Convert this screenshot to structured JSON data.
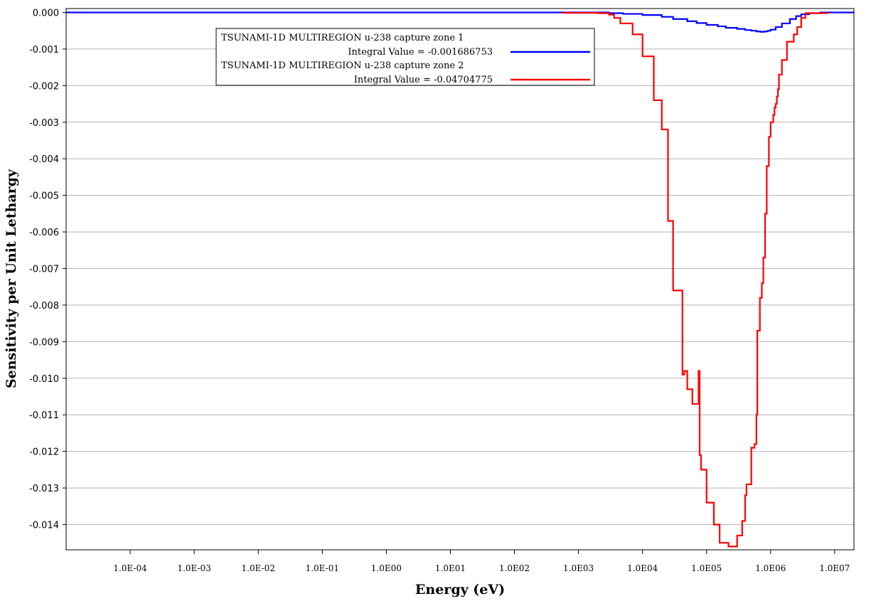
{
  "chart_data": {
    "type": "line",
    "step": true,
    "xscale": "log",
    "xlabel": "Energy (eV)",
    "ylabel": "Sensitivity per Unit Lethargy",
    "xlim": [
      1e-05,
      20000000
    ],
    "ylim": [
      -0.0147,
      0.0
    ],
    "x_ticks": [
      0.0001,
      0.001,
      0.01,
      0.1,
      1,
      10,
      100,
      1000,
      10000,
      100000,
      1000000,
      10000000
    ],
    "x_tick_labels": [
      "1.0E-04",
      "1.0E-03",
      "1.0E-02",
      "1.0E-01",
      "1.0E00",
      "1.0E01",
      "1.0E02",
      "1.0E03",
      "1.0E04",
      "1.0E05",
      "1.0E06",
      "1.0E07"
    ],
    "y_ticks": [
      0.0,
      -0.001,
      -0.002,
      -0.003,
      -0.004,
      -0.005,
      -0.006,
      -0.007,
      -0.008,
      -0.009,
      -0.01,
      -0.011,
      -0.012,
      -0.013,
      -0.014
    ],
    "y_tick_labels": [
      "0.000",
      "-0.001",
      "-0.002",
      "-0.003",
      "-0.004",
      "-0.005",
      "-0.006",
      "-0.007",
      "-0.008",
      "-0.009",
      "-0.010",
      "-0.011",
      "-0.012",
      "-0.013",
      "-0.014"
    ],
    "grid": "horizontal",
    "legend_position": "top-center",
    "series": [
      {
        "name": "TSUNAMI-1D MULTIREGION u-238 capture zone 1",
        "integral_label": "Integral Value = -0.001686753",
        "color": "#0000ff",
        "x": [
          1e-05,
          1000,
          3000,
          5000,
          10000,
          20000,
          30000,
          50000,
          70000,
          100000,
          150000,
          200000,
          300000,
          400000,
          500000,
          600000,
          700000,
          800000,
          900000,
          1000000,
          1200000,
          1500000,
          2000000,
          2500000,
          3000000,
          4000000,
          6000000,
          8000000,
          20000000
        ],
        "y": [
          0.0,
          0.0,
          -2e-05,
          -4e-05,
          -7e-05,
          -0.00012,
          -0.00018,
          -0.00024,
          -0.00029,
          -0.00034,
          -0.00038,
          -0.00042,
          -0.00045,
          -0.00048,
          -0.0005,
          -0.00052,
          -0.00053,
          -0.00052,
          -0.0005,
          -0.00047,
          -0.0004,
          -0.0003,
          -0.00018,
          -0.0001,
          -5e-05,
          -2e-05,
          0.0,
          0.0,
          0.0
        ]
      },
      {
        "name": "TSUNAMI-1D MULTIREGION u-238 capture zone 2",
        "integral_label": "Integral Value = -0.04704775",
        "color": "#ff0000",
        "x": [
          550,
          2000,
          3000,
          3600,
          4500,
          7000,
          10000,
          15000,
          20000,
          25000,
          30000,
          42000,
          45000,
          50000,
          60000,
          75000,
          78000,
          82000,
          85000,
          100000,
          130000,
          160000,
          220000,
          300000,
          360000,
          400000,
          420000,
          500000,
          560000,
          600000,
          620000,
          680000,
          730000,
          770000,
          820000,
          870000,
          940000,
          1000000,
          1100000,
          1150000,
          1200000,
          1250000,
          1300000,
          1350000,
          1500000,
          1800000,
          2300000,
          2600000,
          3000000,
          3500000,
          8000000
        ],
        "y": [
          -1e-05,
          -2e-05,
          -6e-05,
          -0.00015,
          -0.0003,
          -0.0006,
          -0.0012,
          -0.0024,
          -0.0032,
          -0.0057,
          -0.0076,
          -0.0099,
          -0.0098,
          -0.0103,
          -0.0107,
          -0.0098,
          -0.0121,
          -0.0125,
          -0.0125,
          -0.0134,
          -0.014,
          -0.0145,
          -0.0146,
          -0.0143,
          -0.0139,
          -0.0132,
          -0.0129,
          -0.0119,
          -0.0118,
          -0.011,
          -0.0087,
          -0.0078,
          -0.0074,
          -0.0067,
          -0.0055,
          -0.0042,
          -0.0034,
          -0.003,
          -0.0028,
          -0.0026,
          -0.0025,
          -0.0023,
          -0.0021,
          -0.0017,
          -0.0013,
          -0.0008,
          -0.0006,
          -0.0004,
          -0.00015,
          -2e-05,
          -2e-05
        ]
      }
    ]
  }
}
